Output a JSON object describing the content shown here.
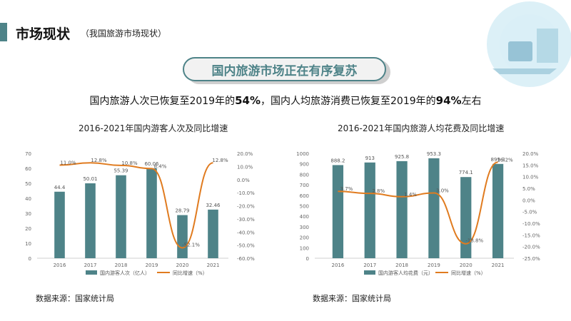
{
  "header": {
    "title": "市场现状",
    "subtitle": "（我国旅游市场现状）"
  },
  "banner": {
    "text": "国内旅游市场正在有序复苏"
  },
  "headline": {
    "part1": "国内旅游人次已恢复至2019年的",
    "pct1": "54%",
    "part2": "，国内人均旅游消费已恢复至2019年的",
    "pct2": "94%",
    "part3": "左右"
  },
  "colors": {
    "accent": "#4e8388",
    "bar": "#4e8388",
    "line": "#e07b1f"
  },
  "chart_data": [
    {
      "type": "bar",
      "title": "2016-2021年国内游客人次及同比增速",
      "categories": [
        "2016",
        "2017",
        "2018",
        "2019",
        "2020",
        "2021"
      ],
      "series": [
        {
          "name": "国内游客人次（亿人）",
          "type": "bar",
          "axis": "left",
          "values": [
            44.4,
            50.01,
            55.39,
            60.06,
            28.79,
            32.46
          ],
          "labels": [
            "44.4",
            "50.01",
            "55.39",
            "60.06",
            "28.79",
            "32.46"
          ]
        },
        {
          "name": "同比增速（%）",
          "type": "line",
          "axis": "right",
          "values": [
            11.0,
            12.8,
            10.8,
            8.4,
            -52.1,
            12.8
          ],
          "labels": [
            "11.0%",
            "12.8%",
            "10.8%",
            "8.4%",
            "-52.1%",
            "12.8%"
          ]
        }
      ],
      "y_left": {
        "min": 0,
        "max": 70,
        "ticks": [
          "0",
          "10",
          "20",
          "30",
          "40",
          "50",
          "60",
          "70"
        ]
      },
      "y_right": {
        "min": -60,
        "max": 20,
        "ticks": [
          "-60.0%",
          "-50.0%",
          "-40.0%",
          "-30.0%",
          "-20.0%",
          "-10.0%",
          "0.0%",
          "10.0%",
          "20.0%"
        ]
      },
      "legend": "bottom",
      "source": "数据来源：国家统计局"
    },
    {
      "type": "bar",
      "title": "2016-2021年国内旅游人均花费及同比增速",
      "categories": [
        "2016",
        "2017",
        "2018",
        "2019",
        "2020",
        "2021"
      ],
      "series": [
        {
          "name": "国内游客人均花费（元）",
          "type": "bar",
          "axis": "left",
          "values": [
            888.2,
            913.0,
            925.8,
            953.3,
            774.1,
            899.3
          ],
          "labels": [
            "888.2",
            "913",
            "925.8",
            "953.3",
            "774.1",
            "899.3"
          ]
        },
        {
          "name": "同比增速（%）",
          "type": "line",
          "axis": "right",
          "values": [
            3.7,
            2.8,
            1.4,
            3.0,
            -18.8,
            16.2
          ],
          "labels": [
            "3.7%",
            "2.8%",
            "1.4%",
            "3.0%",
            "-18.8%",
            "16.2%"
          ]
        }
      ],
      "y_left": {
        "min": 0,
        "max": 1000,
        "ticks": [
          "0",
          "100",
          "200",
          "300",
          "400",
          "500",
          "600",
          "700",
          "800",
          "900",
          "1000"
        ]
      },
      "y_right": {
        "min": -25,
        "max": 20,
        "ticks": [
          "-25.0%",
          "-20.0%",
          "-15.0%",
          "-10.0%",
          "-5.0%",
          "0.0%",
          "5.0%",
          "10.0%",
          "15.0%",
          "20.0%"
        ]
      },
      "legend": "bottom",
      "source": "数据来源：国家统计局"
    }
  ]
}
